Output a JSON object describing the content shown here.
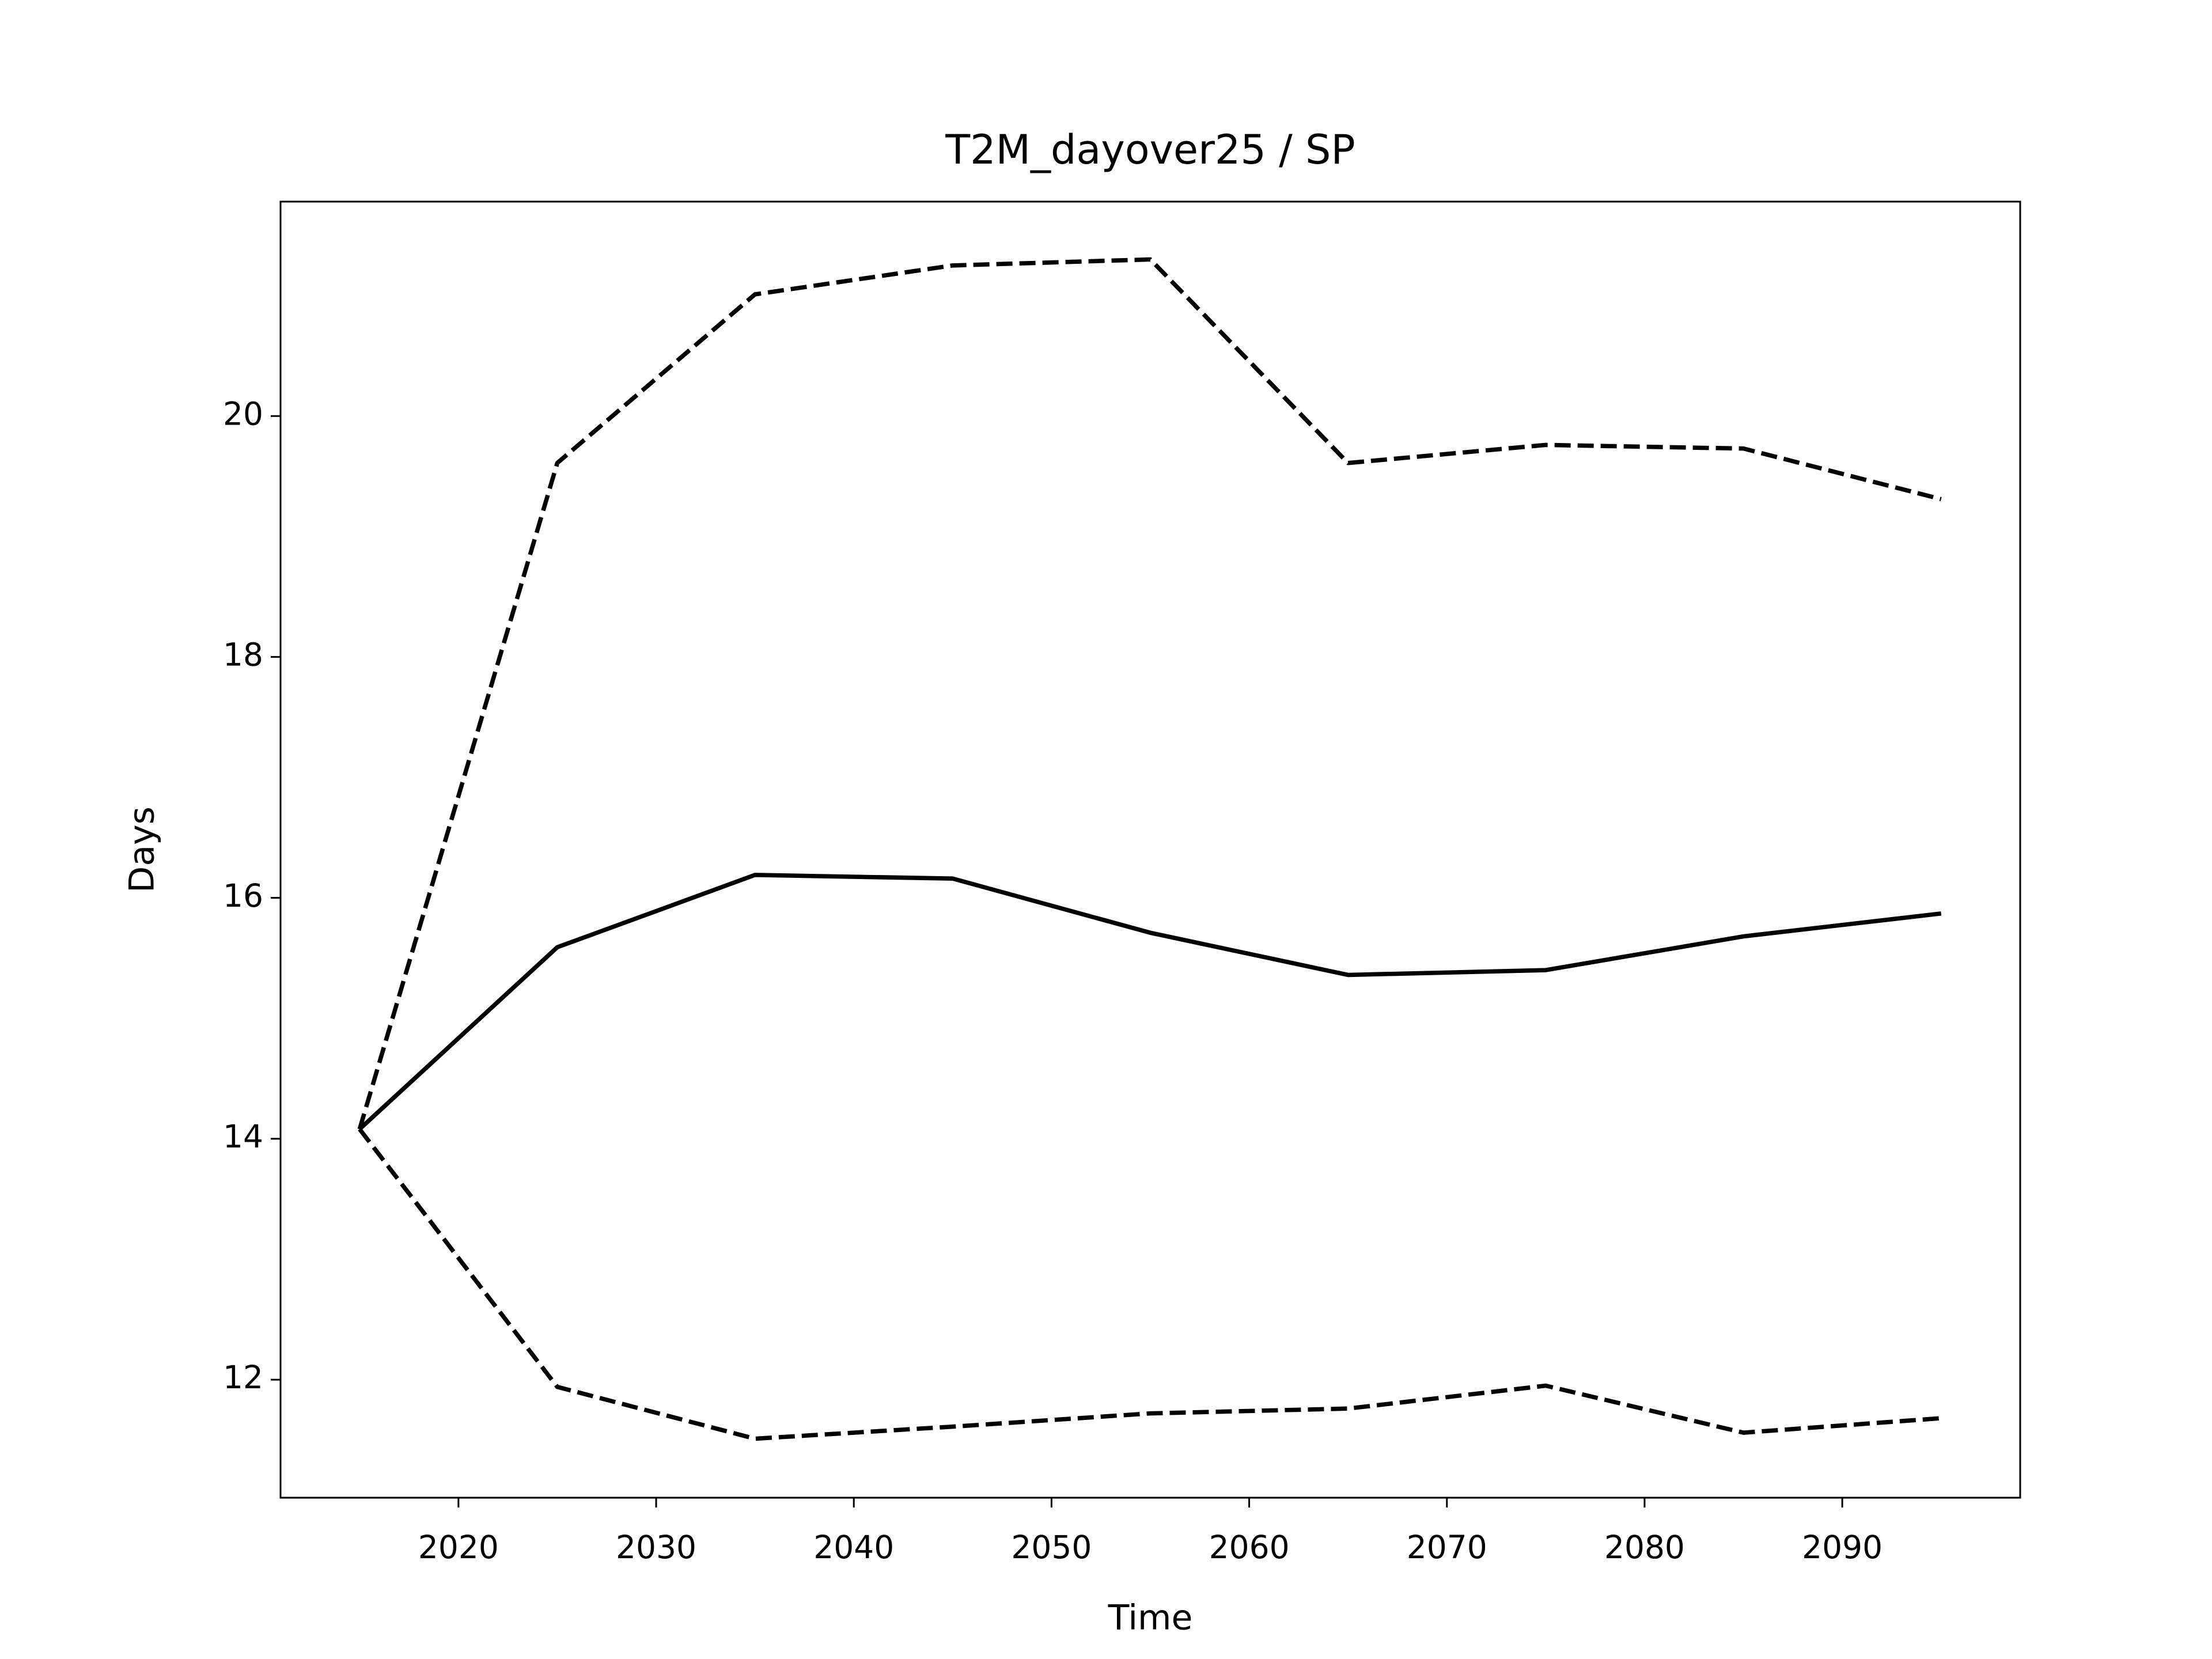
{
  "chart_data": {
    "type": "line",
    "title": "T2M_dayover25 / SP",
    "x_label": "Time",
    "y_label": "Days",
    "x": [
      2015,
      2025,
      2035,
      2045,
      2055,
      2065,
      2075,
      2085,
      2095
    ],
    "series": [
      {
        "color": "#000000",
        "dashed": false,
        "values": [
          14.08,
          15.59,
          16.19,
          16.16,
          15.71,
          15.36,
          15.4,
          15.68,
          15.87
        ]
      },
      {
        "color": "#000000",
        "dashed": true,
        "values": [
          14.08,
          19.61,
          21.01,
          21.25,
          21.3,
          19.61,
          19.76,
          19.73,
          19.31
        ]
      },
      {
        "color": "#000000",
        "dashed": true,
        "values": [
          14.08,
          11.94,
          11.51,
          11.61,
          11.72,
          11.76,
          11.95,
          11.56,
          11.68
        ]
      }
    ],
    "xlim": [
      2011,
      2099
    ],
    "xticks": [
      2020,
      2030,
      2040,
      2050,
      2060,
      2070,
      2080,
      2090
    ],
    "ylim": [
      11.02,
      21.78
    ],
    "yticks": [
      12,
      14,
      16,
      18,
      20
    ],
    "grid": false
  }
}
